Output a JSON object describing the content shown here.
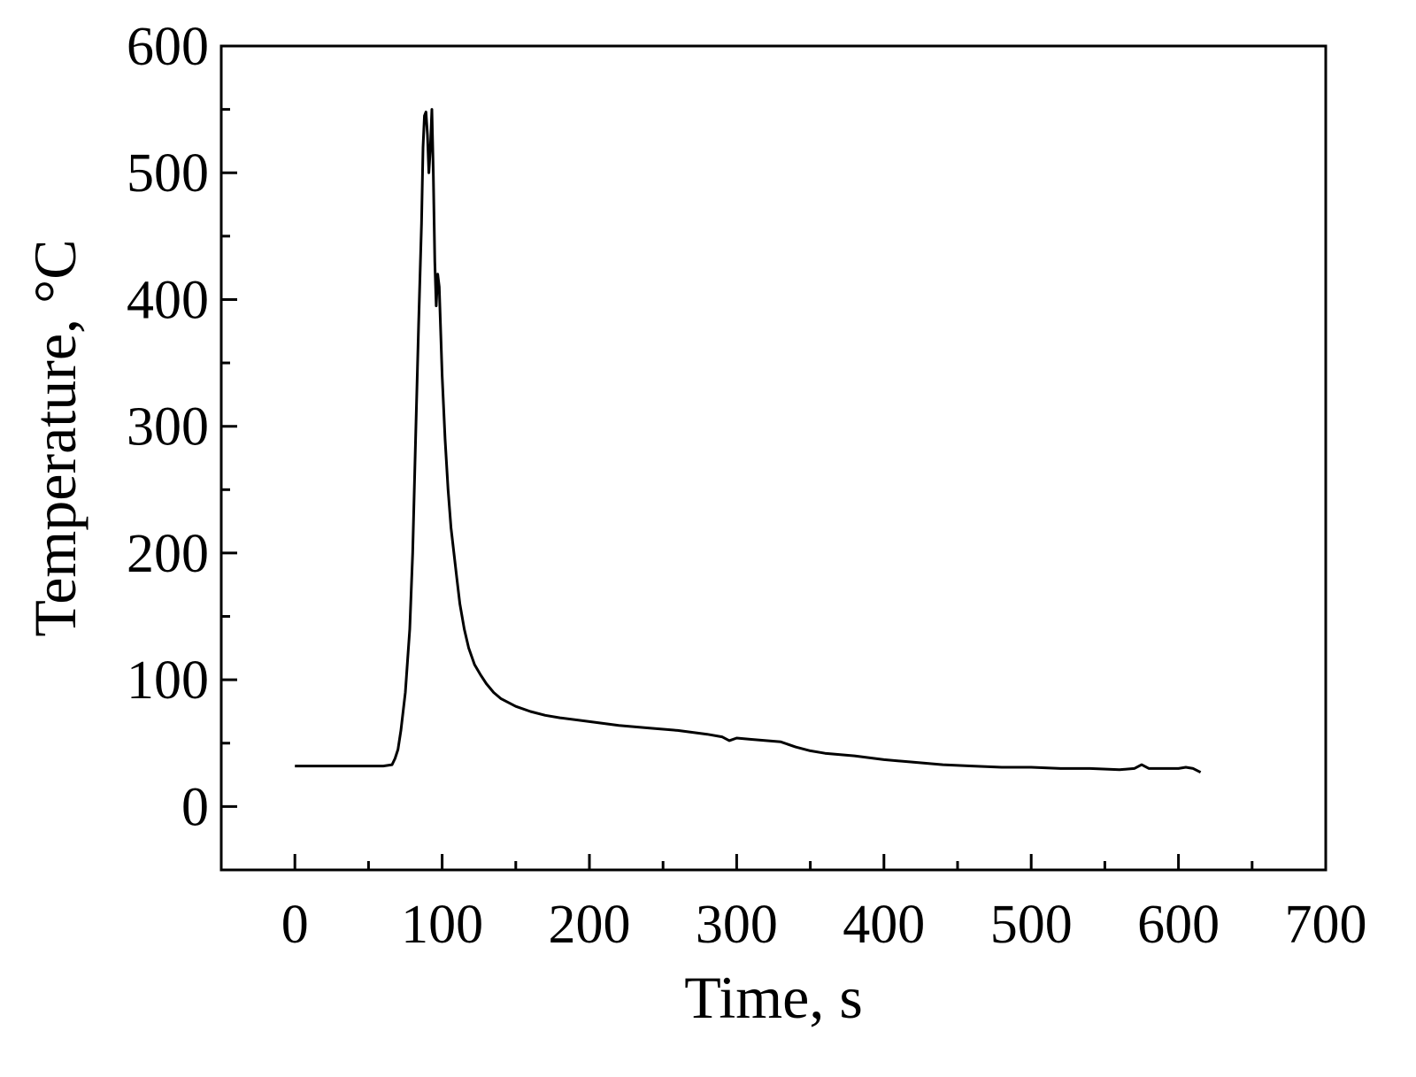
{
  "chart_data": {
    "type": "line",
    "title": "",
    "xlabel": "Time, s",
    "ylabel": "Temperature, °C",
    "xlim": [
      -50,
      700
    ],
    "ylim": [
      -50,
      600
    ],
    "x_ticks": [
      0,
      100,
      200,
      300,
      400,
      500,
      600,
      700
    ],
    "x_tick_labels": [
      "0",
      "100",
      "200",
      "300",
      "400",
      "500",
      "600",
      "700"
    ],
    "y_ticks": [
      0,
      100,
      200,
      300,
      400,
      500,
      600
    ],
    "y_tick_labels": [
      "0",
      "100",
      "200",
      "300",
      "400",
      "500",
      "600"
    ],
    "grid": false,
    "legend": "none",
    "line_color": "#000000",
    "series": [
      {
        "x": [
          0,
          20,
          40,
          60,
          66,
          68,
          70,
          72,
          75,
          78,
          80,
          82,
          84,
          86,
          87,
          88,
          89,
          90,
          91,
          92,
          93,
          94,
          95,
          96,
          97,
          98,
          100,
          102,
          104,
          106,
          108,
          110,
          112,
          115,
          118,
          122,
          126,
          130,
          135,
          140,
          150,
          160,
          170,
          180,
          200,
          220,
          240,
          260,
          280,
          290,
          295,
          300,
          310,
          320,
          330,
          340,
          350,
          360,
          380,
          400,
          420,
          440,
          460,
          480,
          500,
          520,
          540,
          560,
          570,
          575,
          580,
          590,
          600,
          605,
          610,
          615
        ],
        "y": [
          32,
          32,
          32,
          32,
          33,
          38,
          45,
          60,
          90,
          140,
          200,
          290,
          380,
          460,
          520,
          545,
          548,
          530,
          500,
          520,
          550,
          500,
          430,
          395,
          420,
          410,
          340,
          290,
          250,
          220,
          200,
          180,
          160,
          140,
          125,
          112,
          104,
          97,
          90,
          85,
          79,
          75,
          72,
          70,
          67,
          64,
          62,
          60,
          57,
          55,
          52,
          54,
          53,
          52,
          51,
          47,
          44,
          42,
          40,
          37,
          35,
          33,
          32,
          31,
          31,
          30,
          30,
          29,
          30,
          33,
          30,
          30,
          30,
          31,
          30,
          27
        ]
      }
    ]
  }
}
